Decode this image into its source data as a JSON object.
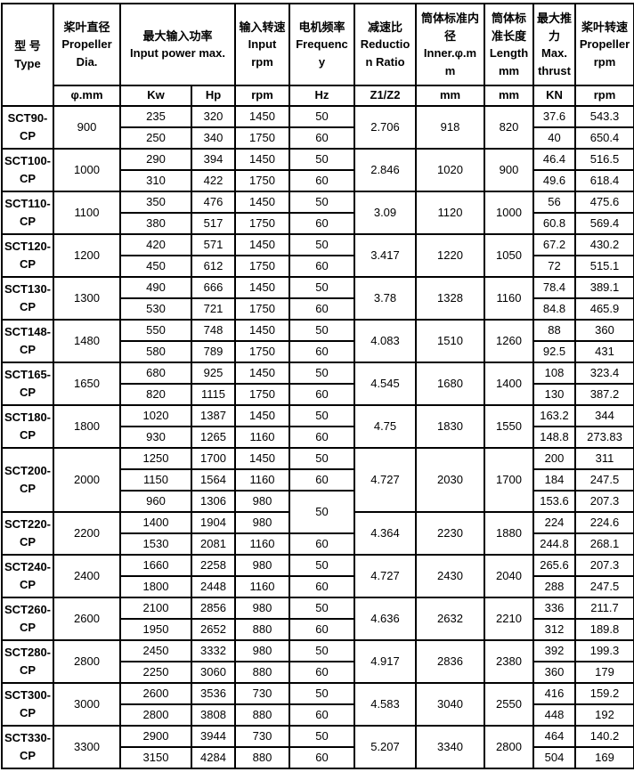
{
  "table": {
    "headers": {
      "type": {
        "zh": "型 号",
        "en": "Type"
      },
      "dia": {
        "zh": "桨叶直径",
        "en": "Propeller Dia."
      },
      "power": {
        "zh": "最大输入功率",
        "en": "Input power max."
      },
      "input_rpm": {
        "zh": "输入转速",
        "en": "Input rpm"
      },
      "freq": {
        "zh": "电机频率",
        "en": "Frequency"
      },
      "ratio": {
        "zh": "减速比",
        "en": "Reduction Ratio"
      },
      "inner": {
        "zh": "筒体标准内径",
        "en": "Inner.φ.mm"
      },
      "length": {
        "zh": "筒体标准长度",
        "en": "Length mm"
      },
      "thrust": {
        "zh": "最大推力",
        "en": "Max. thrust"
      },
      "prop_rpm": {
        "zh": "桨叶转速",
        "en": "Propeller rpm"
      }
    },
    "units": {
      "dia": "φ.mm",
      "kw": "Kw",
      "hp": "Hp",
      "input_rpm": "rpm",
      "freq": "Hz",
      "ratio": "Z1/Z2",
      "inner": "mm",
      "length": "mm",
      "thrust": "KN",
      "prop_rpm": "rpm"
    },
    "models": [
      {
        "type": "SCT90-CP",
        "dia": "900",
        "ratio": "2.706",
        "inner": "918",
        "length": "820",
        "rows": [
          {
            "kw": "235",
            "hp": "320",
            "rpm": "1450",
            "hz": "50",
            "kn": "37.6",
            "prpm": "543.3"
          },
          {
            "kw": "250",
            "hp": "340",
            "rpm": "1750",
            "hz": "60",
            "kn": "40",
            "prpm": "650.4"
          }
        ]
      },
      {
        "type": "SCT100-CP",
        "dia": "1000",
        "ratio": "2.846",
        "inner": "1020",
        "length": "900",
        "rows": [
          {
            "kw": "290",
            "hp": "394",
            "rpm": "1450",
            "hz": "50",
            "kn": "46.4",
            "prpm": "516.5"
          },
          {
            "kw": "310",
            "hp": "422",
            "rpm": "1750",
            "hz": "60",
            "kn": "49.6",
            "prpm": "618.4"
          }
        ]
      },
      {
        "type": "SCT110-CP",
        "dia": "1100",
        "ratio": "3.09",
        "inner": "1120",
        "length": "1000",
        "rows": [
          {
            "kw": "350",
            "hp": "476",
            "rpm": "1450",
            "hz": "50",
            "kn": "56",
            "prpm": "475.6"
          },
          {
            "kw": "380",
            "hp": "517",
            "rpm": "1750",
            "hz": "60",
            "kn": "60.8",
            "prpm": "569.4"
          }
        ]
      },
      {
        "type": "SCT120-CP",
        "dia": "1200",
        "ratio": "3.417",
        "inner": "1220",
        "length": "1050",
        "rows": [
          {
            "kw": "420",
            "hp": "571",
            "rpm": "1450",
            "hz": "50",
            "kn": "67.2",
            "prpm": "430.2"
          },
          {
            "kw": "450",
            "hp": "612",
            "rpm": "1750",
            "hz": "60",
            "kn": "72",
            "prpm": "515.1"
          }
        ]
      },
      {
        "type": "SCT130-CP",
        "dia": "1300",
        "ratio": "3.78",
        "inner": "1328",
        "length": "1160",
        "rows": [
          {
            "kw": "490",
            "hp": "666",
            "rpm": "1450",
            "hz": "50",
            "kn": "78.4",
            "prpm": "389.1"
          },
          {
            "kw": "530",
            "hp": "721",
            "rpm": "1750",
            "hz": "60",
            "kn": "84.8",
            "prpm": "465.9"
          }
        ]
      },
      {
        "type": "SCT148-CP",
        "dia": "1480",
        "ratio": "4.083",
        "inner": "1510",
        "length": "1260",
        "rows": [
          {
            "kw": "550",
            "hp": "748",
            "rpm": "1450",
            "hz": "50",
            "kn": "88",
            "prpm": "360"
          },
          {
            "kw": "580",
            "hp": "789",
            "rpm": "1750",
            "hz": "60",
            "kn": "92.5",
            "prpm": "431"
          }
        ]
      },
      {
        "type": "SCT165-CP",
        "dia": "1650",
        "ratio": "4.545",
        "inner": "1680",
        "length": "1400",
        "rows": [
          {
            "kw": "680",
            "hp": "925",
            "rpm": "1450",
            "hz": "50",
            "kn": "108",
            "prpm": "323.4"
          },
          {
            "kw": "820",
            "hp": "1115",
            "rpm": "1750",
            "hz": "60",
            "kn": "130",
            "prpm": "387.2"
          }
        ]
      },
      {
        "type": "SCT180-CP",
        "dia": "1800",
        "ratio": "4.75",
        "inner": "1830",
        "length": "1550",
        "rows": [
          {
            "kw": "1020",
            "hp": "1387",
            "rpm": "1450",
            "hz": "50",
            "kn": "163.2",
            "prpm": "344"
          },
          {
            "kw": "930",
            "hp": "1265",
            "rpm": "1160",
            "hz": "60",
            "kn": "148.8",
            "prpm": "273.83"
          }
        ]
      },
      {
        "type": "SCT200-CP",
        "dia": "2000",
        "ratio": "4.727",
        "inner": "2030",
        "length": "1700",
        "rows": [
          {
            "kw": "1250",
            "hp": "1700",
            "rpm": "1450",
            "hz": "50",
            "kn": "200",
            "prpm": "311"
          },
          {
            "kw": "1150",
            "hp": "1564",
            "rpm": "1160",
            "hz": "60",
            "kn": "184",
            "prpm": "247.5"
          },
          {
            "kw": "960",
            "hp": "1306",
            "rpm": "980",
            "hz": "50",
            "hz_span": 2,
            "kn": "153.6",
            "prpm": "207.3"
          }
        ]
      },
      {
        "type": "SCT220-CP",
        "dia": "2200",
        "ratio": "4.364",
        "inner": "2230",
        "length": "1880",
        "rows": [
          {
            "kw": "1400",
            "hp": "1904",
            "rpm": "980",
            "hz_skip": true,
            "kn": "224",
            "prpm": "224.6"
          },
          {
            "kw": "1530",
            "hp": "2081",
            "rpm": "1160",
            "hz": "60",
            "kn": "244.8",
            "prpm": "268.1"
          }
        ]
      },
      {
        "type": "SCT240-CP",
        "dia": "2400",
        "ratio": "4.727",
        "inner": "2430",
        "length": "2040",
        "rows": [
          {
            "kw": "1660",
            "hp": "2258",
            "rpm": "980",
            "hz": "50",
            "kn": "265.6",
            "prpm": "207.3"
          },
          {
            "kw": "1800",
            "hp": "2448",
            "rpm": "1160",
            "hz": "60",
            "kn": "288",
            "prpm": "247.5"
          }
        ]
      },
      {
        "type": "SCT260-CP",
        "dia": "2600",
        "ratio": "4.636",
        "inner": "2632",
        "length": "2210",
        "rows": [
          {
            "kw": "2100",
            "hp": "2856",
            "rpm": "980",
            "hz": "50",
            "kn": "336",
            "prpm": "211.7"
          },
          {
            "kw": "1950",
            "hp": "2652",
            "rpm": "880",
            "hz": "60",
            "kn": "312",
            "prpm": "189.8"
          }
        ]
      },
      {
        "type": "SCT280-CP",
        "dia": "2800",
        "ratio": "4.917",
        "inner": "2836",
        "length": "2380",
        "rows": [
          {
            "kw": "2450",
            "hp": "3332",
            "rpm": "980",
            "hz": "50",
            "kn": "392",
            "prpm": "199.3"
          },
          {
            "kw": "2250",
            "hp": "3060",
            "rpm": "880",
            "hz": "60",
            "kn": "360",
            "prpm": "179"
          }
        ]
      },
      {
        "type": "SCT300-CP",
        "dia": "3000",
        "ratio": "4.583",
        "inner": "3040",
        "length": "2550",
        "rows": [
          {
            "kw": "2600",
            "hp": "3536",
            "rpm": "730",
            "hz": "50",
            "kn": "416",
            "prpm": "159.2"
          },
          {
            "kw": "2800",
            "hp": "3808",
            "rpm": "880",
            "hz": "60",
            "kn": "448",
            "prpm": "192"
          }
        ]
      },
      {
        "type": "SCT330-CP",
        "dia": "3300",
        "ratio": "5.207",
        "inner": "3340",
        "length": "2800",
        "rows": [
          {
            "kw": "2900",
            "hp": "3944",
            "rpm": "730",
            "hz": "50",
            "kn": "464",
            "prpm": "140.2"
          },
          {
            "kw": "3150",
            "hp": "4284",
            "rpm": "880",
            "hz": "60",
            "kn": "504",
            "prpm": "169"
          }
        ]
      }
    ]
  }
}
